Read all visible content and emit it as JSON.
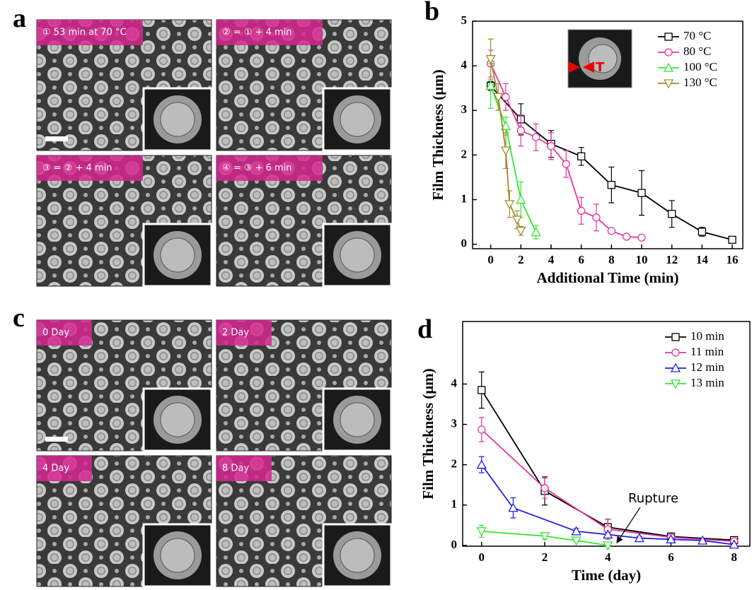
{
  "panels": [
    {
      "letter": "a",
      "image_labels": [
        "① 53 min at 70 °C",
        "② = ① + 4 min",
        "③ = ② + 4 min",
        "④ = ③ + 6 min"
      ]
    },
    {
      "letter": "c",
      "image_labels": [
        "0 Day",
        "2 Day",
        "4 Day",
        "8 Day"
      ]
    }
  ],
  "chart_data": [
    {
      "type": "line",
      "panel_label": "b",
      "x_label": "Additional Time (min)",
      "y_label": "Film Thickness (μm)",
      "inset_label": "T",
      "xlim": [
        -1.2,
        16.7
      ],
      "xticks": [
        0,
        2,
        4,
        6,
        8,
        10,
        12,
        14,
        16
      ],
      "ylim": [
        -0.1,
        5
      ],
      "yticks": [
        0,
        1,
        2,
        3,
        4,
        5
      ],
      "legend": "upper right",
      "series": [
        {
          "name": "70 °C",
          "color": "#000000",
          "marker": "square",
          "x": [
            0,
            2,
            4,
            6,
            8,
            10,
            12,
            14,
            16
          ],
          "values": [
            3.55,
            2.8,
            2.25,
            1.97,
            1.33,
            1.15,
            0.68,
            0.28,
            0.1
          ],
          "errors": [
            0.1,
            0.35,
            0.3,
            0.2,
            0.4,
            0.5,
            0.3,
            0.1,
            0.05
          ]
        },
        {
          "name": "80 °C",
          "color": "#e8359a",
          "marker": "circle",
          "x": [
            0,
            1,
            2,
            3,
            4,
            5,
            6,
            7,
            8,
            9,
            10
          ],
          "values": [
            4.05,
            3.3,
            2.55,
            2.4,
            2.2,
            1.8,
            0.75,
            0.6,
            0.3,
            0.17,
            0.15
          ],
          "errors": [
            0.3,
            0.3,
            0.35,
            0.3,
            0.3,
            0.3,
            0.3,
            0.3,
            0.05,
            0.05,
            0.05
          ]
        },
        {
          "name": "100 °C",
          "color": "#33e633",
          "marker": "triangle-up",
          "x": [
            0,
            1,
            2,
            3
          ],
          "values": [
            3.55,
            2.65,
            1.0,
            0.27
          ],
          "errors": [
            0.5,
            0.2,
            0.4,
            0.15
          ]
        },
        {
          "name": "130 °C",
          "color": "#a38a2e",
          "marker": "triangle-down",
          "x": [
            0,
            0.5,
            1,
            1.25,
            1.75,
            2
          ],
          "values": [
            4.15,
            3.3,
            2.1,
            0.9,
            0.55,
            0.3
          ],
          "errors": [
            0.45,
            0.3,
            0.4,
            0.3,
            0.2,
            0.1
          ]
        }
      ]
    },
    {
      "type": "line",
      "panel_label": "d",
      "x_label": "Time (day)",
      "y_label": "Film Thickness (μm)",
      "annotation": "Rupture",
      "xlim": [
        -0.6,
        8.5
      ],
      "xticks": [
        0,
        2,
        4,
        6,
        8
      ],
      "ylim": [
        -0.02,
        5.55
      ],
      "yticks": [
        0,
        1,
        2,
        3,
        4
      ],
      "legend": "upper right",
      "series": [
        {
          "name": "10 min",
          "color": "#000000",
          "marker": "square",
          "x": [
            0,
            2,
            4,
            6,
            8
          ],
          "values": [
            3.85,
            1.35,
            0.45,
            0.22,
            0.13
          ],
          "errors": [
            0.45,
            0.35,
            0.2,
            0.05,
            0.05
          ]
        },
        {
          "name": "11 min",
          "color": "#e8359a",
          "marker": "circle",
          "x": [
            0,
            2,
            4,
            6,
            8
          ],
          "values": [
            2.87,
            1.42,
            0.4,
            0.2,
            0.1
          ],
          "errors": [
            0.3,
            0.25,
            0.25,
            0.05,
            0.05
          ]
        },
        {
          "name": "12 min",
          "color": "#2222dd",
          "marker": "triangle-up",
          "x": [
            0,
            1,
            3,
            4,
            5,
            6,
            7,
            8
          ],
          "values": [
            2.0,
            0.93,
            0.35,
            0.27,
            0.18,
            0.15,
            0.12,
            0.02
          ],
          "errors": [
            0.2,
            0.25,
            0.07,
            0.05,
            0.04,
            0.03,
            0.03,
            0.03
          ]
        },
        {
          "name": "13 min",
          "color": "#33e633",
          "marker": "triangle-down",
          "x": [
            0,
            2,
            3,
            4
          ],
          "values": [
            0.35,
            0.23,
            0.12,
            0.0
          ],
          "errors": [
            0.15,
            0.08,
            0.04,
            0.02
          ]
        }
      ]
    }
  ]
}
